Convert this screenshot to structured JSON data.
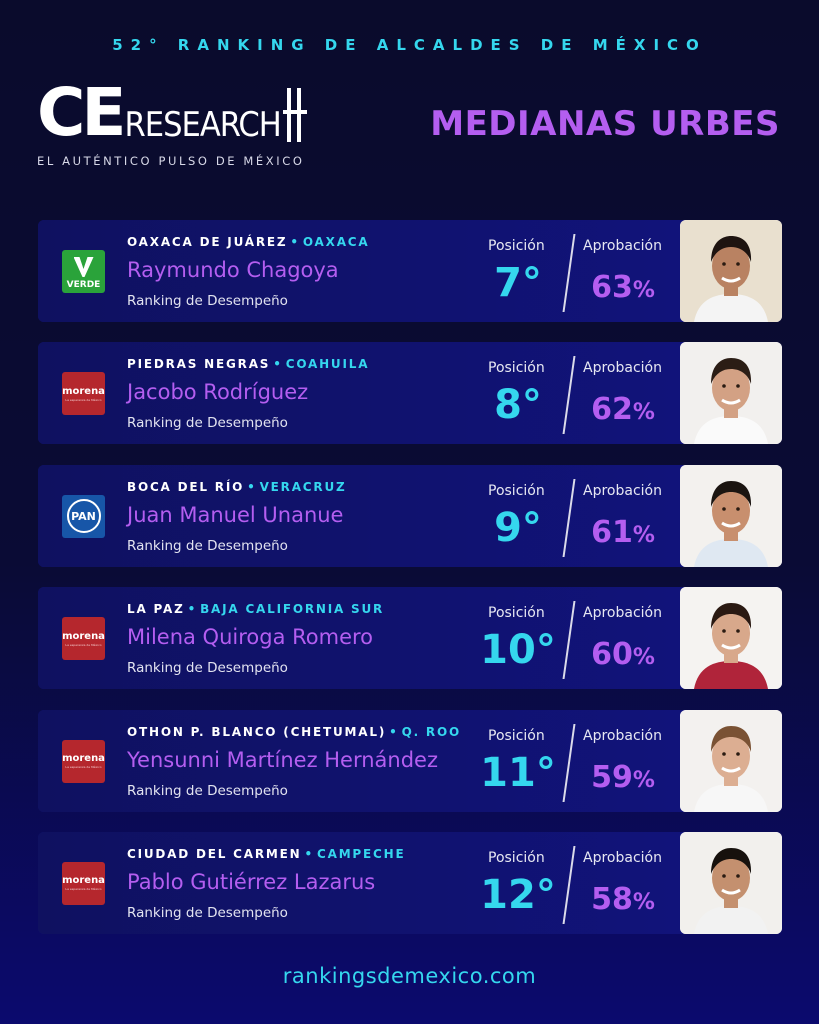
{
  "header": {
    "top_title": "52° RANKING DE ALCALDES DE MÉXICO",
    "logo_ce": "CE",
    "logo_research": "RESEARCH",
    "tagline": "EL AUTÉNTICO PULSO DE MÉXICO",
    "section_title": "MEDIANAS URBES"
  },
  "labels": {
    "position": "Posición",
    "approval": "Aprobación",
    "ranking": "Ranking de Desempeño"
  },
  "mayors": [
    {
      "city": "OAXACA DE JUÁREZ",
      "state": "OAXACA",
      "name": "Raymundo Chagoya",
      "position": "7°",
      "approval": "63",
      "party": "VERDE",
      "party_color": "#2aa33a",
      "photo_bg": "#e9e0cf",
      "skin": "#b98262",
      "hair": "#1e1410",
      "shirt": "#f4f4f4"
    },
    {
      "city": "PIEDRAS NEGRAS",
      "state": "COAHUILA",
      "name": "Jacobo Rodríguez",
      "position": "8°",
      "approval": "62",
      "party": "morena",
      "party_sub": "La esperanza de México",
      "party_color": "#b5272d",
      "photo_bg": "#f2f0ee",
      "skin": "#d3a184",
      "hair": "#2b1d15",
      "shirt": "#fafafa"
    },
    {
      "city": "BOCA DEL RÍO",
      "state": "VERACRUZ",
      "name": "Juan Manuel Unanue",
      "position": "9°",
      "approval": "61",
      "party": "PAN",
      "party_color": "#1756a8",
      "photo_bg": "#f3f1ee",
      "skin": "#c88f6e",
      "hair": "#1b1511",
      "shirt": "#dfe8f2"
    },
    {
      "city": "LA PAZ",
      "state": "BAJA CALIFORNIA SUR",
      "name": "Milena Quiroga Romero",
      "position": "10°",
      "approval": "60",
      "party": "morena",
      "party_sub": "La esperanza de México",
      "party_color": "#b5272d",
      "photo_bg": "#f5f3f1",
      "skin": "#d8a88b",
      "hair": "#2a1912",
      "shirt": "#b0243a"
    },
    {
      "city": "OTHON P. BLANCO (CHETUMAL)",
      "state": "Q. ROO",
      "name": "Yensunni Martínez Hernández",
      "position": "11°",
      "approval": "59",
      "party": "morena",
      "party_sub": "La esperanza de México",
      "party_color": "#b5272d",
      "photo_bg": "#f3f1ef",
      "skin": "#dcae92",
      "hair": "#7a5234",
      "shirt": "#f7f7f7"
    },
    {
      "city": "CIUDAD DEL CARMEN",
      "state": "CAMPECHE",
      "name": "Pablo Gutiérrez Lazarus",
      "position": "12°",
      "approval": "58",
      "party": "morena",
      "party_sub": "La esperanza de México",
      "party_color": "#b5272d",
      "photo_bg": "#f2f0ed",
      "skin": "#c4906f",
      "hair": "#17110d",
      "shirt": "#f2f2f2"
    }
  ],
  "percent_sign": "%",
  "footer": "rankingsdemexico.com"
}
